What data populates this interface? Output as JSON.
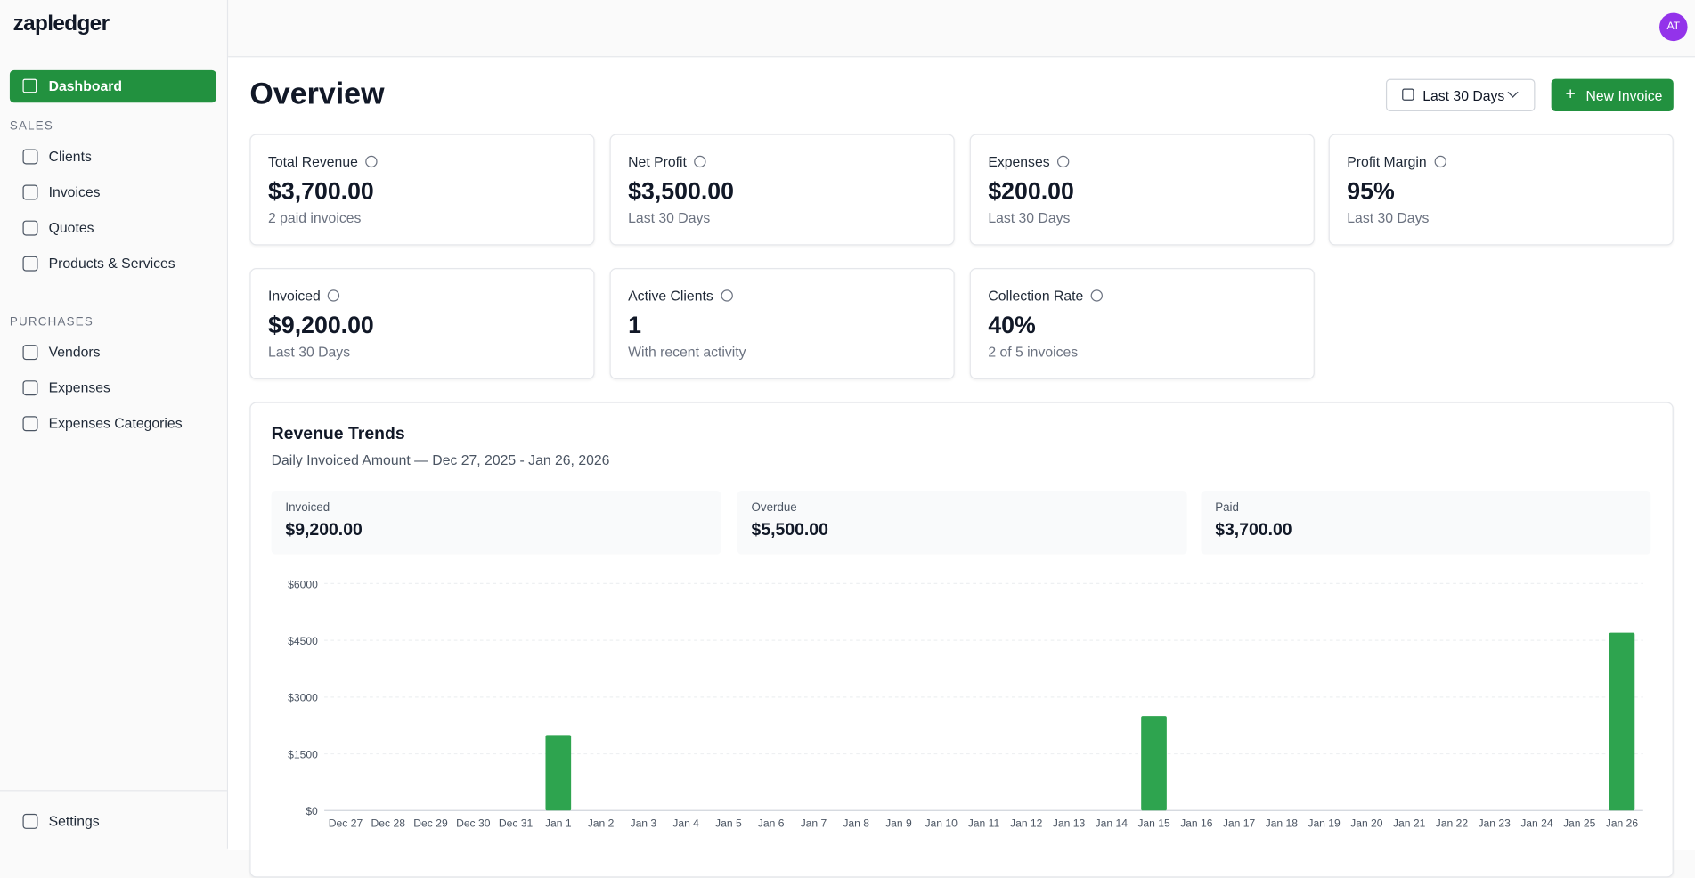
{
  "brand": "zapledger",
  "avatar": "AT",
  "nav": {
    "dashboard": "Dashboard",
    "sections": [
      {
        "title": "SALES",
        "items": [
          "Clients",
          "Invoices",
          "Quotes",
          "Products & Services"
        ]
      },
      {
        "title": "PURCHASES",
        "items": [
          "Vendors",
          "Expenses",
          "Expenses Categories"
        ]
      }
    ],
    "settings": "Settings"
  },
  "page": {
    "title": "Overview",
    "date_filter": "Last 30 Days",
    "new_invoice": "New Invoice"
  },
  "kpis": [
    {
      "label": "Total Revenue",
      "value": "$3,700.00",
      "note": "2 paid invoices"
    },
    {
      "label": "Net Profit",
      "value": "$3,500.00",
      "note": "Last 30 Days"
    },
    {
      "label": "Expenses",
      "value": "$200.00",
      "note": "Last 30 Days"
    },
    {
      "label": "Profit Margin",
      "value": "95%",
      "note": "Last 30 Days"
    },
    {
      "label": "Invoiced",
      "value": "$9,200.00",
      "note": "Last 30 Days"
    },
    {
      "label": "Active Clients",
      "value": "1",
      "note": "With recent activity"
    },
    {
      "label": "Collection Rate",
      "value": "40%",
      "note": "2 of 5 invoices"
    }
  ],
  "revenue_chart": {
    "type": "bar",
    "title": "Revenue Trends",
    "subtitle": "Daily Invoiced Amount — Dec 27, 2025 - Jan 26, 2026",
    "summary": [
      {
        "label": "Invoiced",
        "value": "$9,200.00"
      },
      {
        "label": "Overdue",
        "value": "$5,500.00"
      },
      {
        "label": "Paid",
        "value": "$3,700.00"
      }
    ],
    "categories": [
      "Dec 27",
      "Dec 28",
      "Dec 29",
      "Dec 30",
      "Dec 31",
      "Jan 1",
      "Jan 2",
      "Jan 3",
      "Jan 4",
      "Jan 5",
      "Jan 6",
      "Jan 7",
      "Jan 8",
      "Jan 9",
      "Jan 10",
      "Jan 11",
      "Jan 12",
      "Jan 13",
      "Jan 14",
      "Jan 15",
      "Jan 16",
      "Jan 17",
      "Jan 18",
      "Jan 19",
      "Jan 20",
      "Jan 21",
      "Jan 22",
      "Jan 23",
      "Jan 24",
      "Jan 25",
      "Jan 26"
    ],
    "values": [
      0,
      0,
      0,
      0,
      0,
      2000,
      0,
      0,
      0,
      0,
      0,
      0,
      0,
      0,
      0,
      0,
      0,
      0,
      0,
      2500,
      0,
      0,
      0,
      0,
      0,
      0,
      0,
      0,
      0,
      0,
      4700
    ],
    "color": "#2ea44f",
    "ylim": [
      0,
      6000
    ],
    "yticks": [
      {
        "value": 0,
        "label": "$0"
      },
      {
        "value": 1500,
        "label": "$1500"
      },
      {
        "value": 3000,
        "label": "$3000"
      },
      {
        "value": 4500,
        "label": "$4500"
      },
      {
        "value": 6000,
        "label": "$6000"
      }
    ],
    "grid": true
  }
}
